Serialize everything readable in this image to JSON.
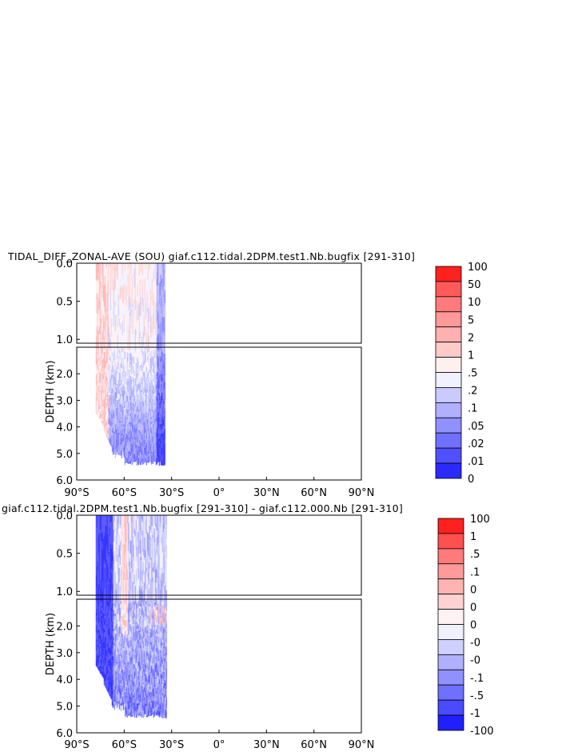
{
  "chart_data": [
    {
      "type": "heatmap",
      "title": "TIDAL_DIFF_ZONAL-AVE (SOU) giaf.c112.tidal.2DPM.test1.Nb.bugfix [291-310]",
      "ylabel": "DEPTH (km)",
      "x_ticks": [
        "90°S",
        "60°S",
        "30°S",
        "0°",
        "30°N",
        "60°N",
        "90°N"
      ],
      "y_ticks_upper": [
        "0.0",
        "0.5",
        "1.0"
      ],
      "y_ticks_lower": [
        "2.0",
        "3.0",
        "4.0",
        "5.0",
        "6.0"
      ],
      "xlim": [
        -90,
        90
      ],
      "ylim": [
        0,
        6
      ],
      "data_extent_lat": [
        -78,
        -34
      ],
      "colorbar": {
        "labels": [
          "100",
          "50",
          "10",
          "5",
          "2",
          "1",
          ".5",
          ".2",
          ".1",
          ".05",
          ".02",
          ".01",
          "0"
        ],
        "colors": [
          "#ff2020",
          "#ff5a5a",
          "#ff7a7a",
          "#ff9898",
          "#ffb0b0",
          "#ffcaca",
          "#fff0f0",
          "#f0f0ff",
          "#cacaff",
          "#b0b0ff",
          "#9090ff",
          "#7070ff",
          "#5050ff",
          "#2a2aff"
        ]
      }
    },
    {
      "type": "heatmap",
      "title": "giaf.c112.tidal.2DPM.test1.Nb.bugfix [291-310] - giaf.c112.000.Nb [291-310]",
      "ylabel": "DEPTH (km)",
      "x_ticks": [
        "90°S",
        "60°S",
        "30°S",
        "0°",
        "30°N",
        "60°N",
        "90°N"
      ],
      "y_ticks_upper": [
        "0.0",
        "0.5",
        "1.0"
      ],
      "y_ticks_lower": [
        "2.0",
        "3.0",
        "4.0",
        "5.0",
        "6.0"
      ],
      "xlim": [
        -90,
        90
      ],
      "ylim": [
        0,
        6
      ],
      "data_extent_lat": [
        -78,
        -33
      ],
      "colorbar": {
        "labels": [
          "100",
          "1",
          ".5",
          ".1",
          "0",
          "0",
          "0",
          "-0",
          "-0",
          "-.1",
          "-.5",
          "-1",
          "-100"
        ],
        "colors": [
          "#ff2020",
          "#ff5050",
          "#ff7a7a",
          "#ff9a9a",
          "#ffb4b4",
          "#ffd2d2",
          "#fff2f2",
          "#f0f0ff",
          "#d0d0ff",
          "#b0b0ff",
          "#9090ff",
          "#7070ff",
          "#4a4aff",
          "#2020ff"
        ]
      }
    }
  ]
}
